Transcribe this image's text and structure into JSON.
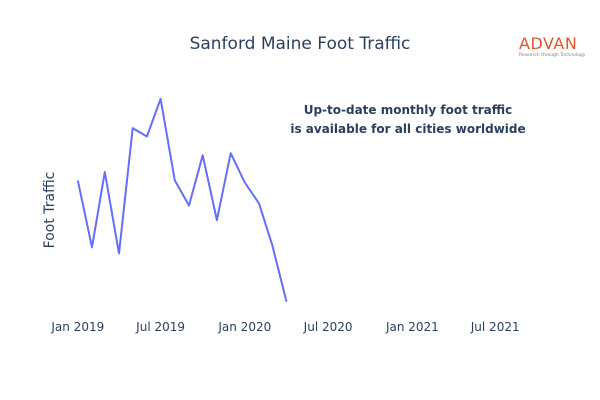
{
  "chart_data": {
    "type": "line",
    "title": "Sanford Maine Foot Traffic",
    "xlabel": "",
    "ylabel": "Foot Traffic",
    "x": [
      "2019-01",
      "2019-02",
      "2019-03",
      "2019-04",
      "2019-05",
      "2019-06",
      "2019-07",
      "2019-08",
      "2019-09",
      "2019-10",
      "2019-11",
      "2019-12",
      "2020-01",
      "2020-02",
      "2020-03",
      "2020-04"
    ],
    "series": [
      {
        "color": "#636efa",
        "values": [
          62,
          30,
          66,
          27,
          87,
          83,
          101,
          62,
          50,
          74,
          43,
          75,
          61,
          51,
          31,
          4
        ]
      }
    ],
    "xlim": [
      "2018-12-15",
      "2021-09-15"
    ],
    "ylim": [
      0,
      110
    ],
    "x_ticks": [
      "Jan 2019",
      "Jul 2019",
      "Jan 2020",
      "Jul 2020",
      "Jan 2021",
      "Jul 2021"
    ],
    "x_tick_dates": [
      "2019-01-01",
      "2019-07-01",
      "2020-01-01",
      "2020-07-01",
      "2021-01-01",
      "2021-07-01"
    ],
    "y_ticks_visible": false,
    "grid": false,
    "legend": "none",
    "annotation": {
      "line1": "Up-to-date monthly foot traffic",
      "line2": "is available for all cities worldwide"
    }
  },
  "logo": {
    "word": "ADVAN",
    "tagline": "Research through Technology",
    "color": "#e2552a"
  }
}
